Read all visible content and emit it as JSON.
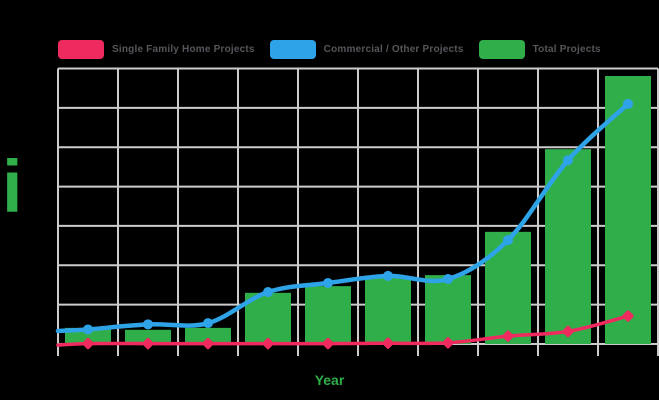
{
  "legend": {
    "items": [
      {
        "label": "Single Family Home Projects",
        "color": "#EF2A5F"
      },
      {
        "label": "Commercial / Other Projects",
        "color": "#2FA3E7"
      },
      {
        "label": "Total Projects",
        "color": "#2FAE4A"
      }
    ]
  },
  "axes": {
    "x_label": "Year",
    "y_label": "i"
  },
  "colors": {
    "background": "#000000",
    "grid": "#CCCCCC",
    "legend_text": "#55565B",
    "single_family": "#EF2A5F",
    "commercial": "#2FA3E7",
    "total": "#2FAE4A"
  },
  "chart_data": {
    "type": "bar",
    "subtype": "bar-and-line combo",
    "title": "",
    "xlabel": "Year",
    "ylabel": "i",
    "categories": [
      "",
      "",
      "",
      "",
      "",
      "",
      "",
      "",
      "",
      ""
    ],
    "x_tick_labels_visible": false,
    "y_tick_labels_visible": false,
    "grid": true,
    "legend_position": "top",
    "ylim": [
      0,
      7
    ],
    "units_note": "No numeric axis labels are shown; values are estimated in gridline units (1 unit = one horizontal gridline interval; 7 intervals span the plot).",
    "series": [
      {
        "name": "Total Projects",
        "render": "bar",
        "color": "#2FAE4A",
        "values": [
          0.41,
          0.36,
          0.41,
          1.3,
          1.47,
          1.7,
          1.75,
          2.85,
          4.95,
          6.81
        ]
      },
      {
        "name": "Commercial / Other Projects",
        "render": "line",
        "color": "#2FA3E7",
        "values": [
          0.37,
          0.5,
          0.53,
          1.32,
          1.55,
          1.73,
          1.65,
          2.64,
          4.67,
          6.1
        ]
      },
      {
        "name": "Single Family Home Projects",
        "render": "line",
        "color": "#EF2A5F",
        "values": [
          0.01,
          0.01,
          0.01,
          0.01,
          0.01,
          0.02,
          0.03,
          0.2,
          0.32,
          0.71
        ]
      }
    ]
  }
}
